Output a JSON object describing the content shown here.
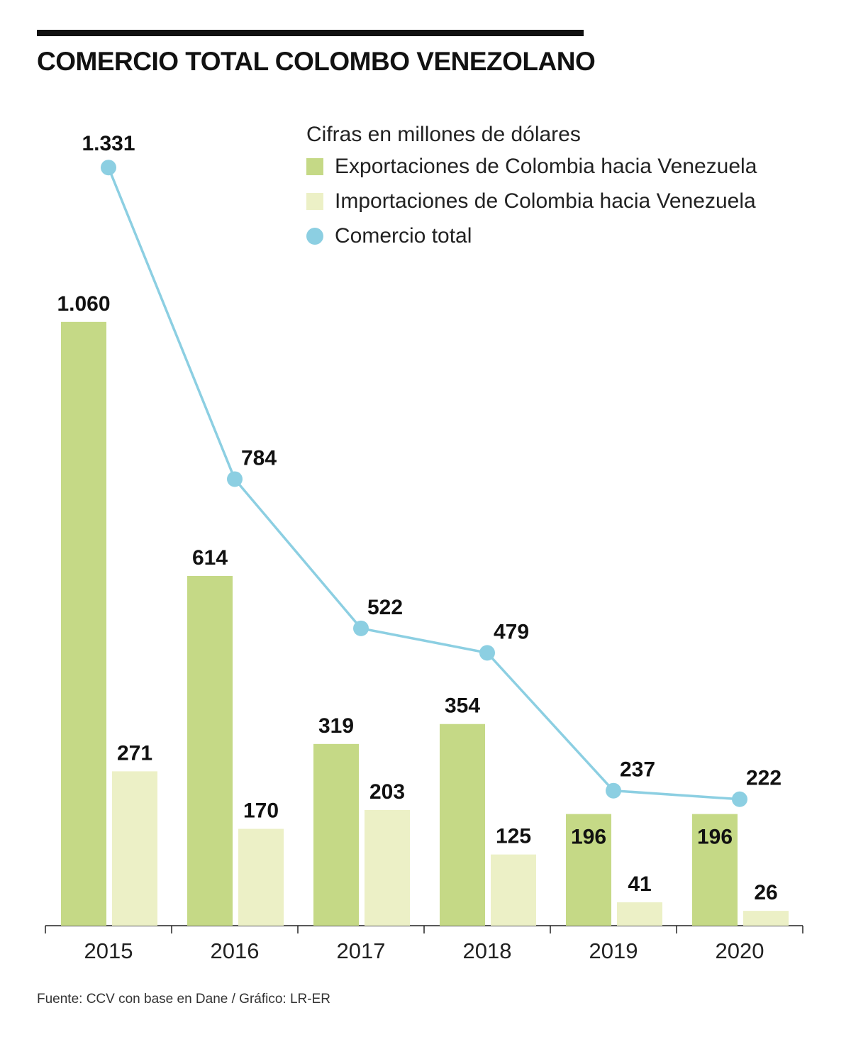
{
  "title": "COMERCIO TOTAL COLOMBO VENEZOLANO",
  "legend": {
    "subtitle": "Cifras en millones de dólares",
    "exports": "Exportaciones de Colombia hacia Venezuela",
    "imports": "Importaciones de Colombia hacia Venezuela",
    "total": "Comercio total"
  },
  "source": "Fuente: CCV con base en Dane / Gráfico: LR-ER",
  "colors": {
    "exports": "#c5d986",
    "imports": "#ecf0c6",
    "total": "#8ccfe2",
    "text": "#111111"
  },
  "chart_data": {
    "type": "bar",
    "title": "COMERCIO TOTAL COLOMBO VENEZOLANO",
    "ylabel": "Cifras en millones de dólares",
    "categories": [
      "2015",
      "2016",
      "2017",
      "2018",
      "2019",
      "2020"
    ],
    "series": [
      {
        "name": "Exportaciones de Colombia hacia Venezuela",
        "type": "bar",
        "values": [
          1060,
          614,
          319,
          354,
          196,
          196
        ],
        "labels": [
          "1.060",
          "614",
          "319",
          "354",
          "196",
          "196"
        ]
      },
      {
        "name": "Importaciones de Colombia hacia Venezuela",
        "type": "bar",
        "values": [
          271,
          170,
          203,
          125,
          41,
          26
        ],
        "labels": [
          "271",
          "170",
          "203",
          "125",
          "41",
          "26"
        ]
      },
      {
        "name": "Comercio total",
        "type": "line",
        "values": [
          1331,
          784,
          522,
          479,
          237,
          222
        ],
        "labels": [
          "1.331",
          "784",
          "522",
          "479",
          "237",
          "222"
        ]
      }
    ],
    "ylim": [
      0,
      1331
    ],
    "legend_position": "top-right",
    "grid": false
  }
}
